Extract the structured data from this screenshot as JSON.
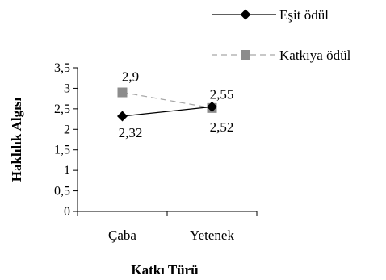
{
  "chart_data": {
    "type": "line",
    "categories": [
      "Çaba",
      "Yetenek"
    ],
    "series": [
      {
        "name": "Eşit ödül",
        "values": [
          2.32,
          2.55
        ],
        "color": "#000000",
        "marker": "diamond",
        "line_style": "solid",
        "labels": [
          "2,32",
          "2,55"
        ]
      },
      {
        "name": "Katkıya ödül",
        "values": [
          2.9,
          2.52
        ],
        "color": "#8c8c8c",
        "marker": "square",
        "line_style": "dashed",
        "labels": [
          "2,9",
          "2,52"
        ]
      }
    ],
    "xlabel": "Katkı Türü",
    "ylabel": "Haklılık Algısı",
    "ylim": [
      0,
      3.5
    ],
    "ytick_labels": [
      "0",
      "0,5",
      "1",
      "1,5",
      "2",
      "2,5",
      "3",
      "3,5"
    ],
    "legend_position": "top-right",
    "grid": false
  }
}
